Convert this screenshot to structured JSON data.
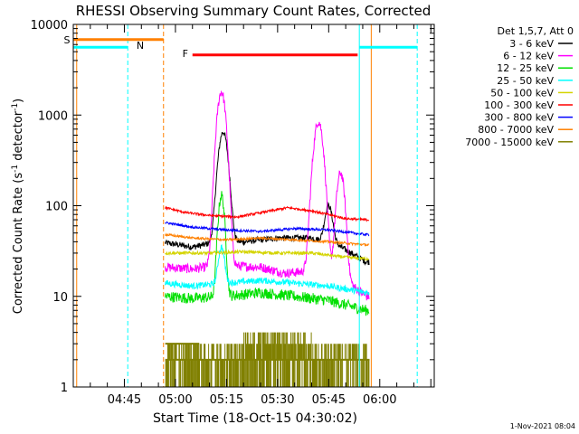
{
  "chart_data": {
    "type": "line",
    "title": "RHESSI Observing Summary Count Rates, Corrected",
    "xlabel": "Start Time (18-Oct-15 04:30:02)",
    "ylabel_main": "Corrected Count Rate (s",
    "ylabel_exp1": "-1",
    "ylabel_mid": " detector",
    "ylabel_exp2": "-1",
    "ylabel_end": ")",
    "yscale": "log",
    "ylim": [
      1,
      10000
    ],
    "xlim_minutes": [
      0,
      106
    ],
    "y_ticks": [
      {
        "v": 1,
        "label": "1"
      },
      {
        "v": 10,
        "label": "10"
      },
      {
        "v": 100,
        "label": "100"
      },
      {
        "v": 1000,
        "label": "1000"
      },
      {
        "v": 10000,
        "label": "10000"
      }
    ],
    "x_ticks": [
      {
        "m": 15,
        "label": "04:45"
      },
      {
        "m": 30,
        "label": "05:00"
      },
      {
        "m": 45,
        "label": "05:15"
      },
      {
        "m": 60,
        "label": "05:30"
      },
      {
        "m": 75,
        "label": "05:45"
      },
      {
        "m": 90,
        "label": "06:00"
      }
    ],
    "legend_header": "Det 1,5,7, Att 0",
    "series": [
      {
        "name": "3 - 6 keV",
        "color": "#000000",
        "base": [
          [
            27,
            39
          ],
          [
            35,
            35
          ],
          [
            43,
            40
          ],
          [
            50,
            40
          ],
          [
            60,
            44
          ],
          [
            70,
            44
          ],
          [
            78,
            36
          ],
          [
            86,
            24
          ]
        ],
        "peaks": [
          [
            44,
            650,
            1.2
          ],
          [
            75,
            100,
            1.0
          ]
        ],
        "noise": 0.08
      },
      {
        "name": "6 - 12 keV",
        "color": "#ff00ff",
        "base": [
          [
            27,
            21
          ],
          [
            35,
            20
          ],
          [
            43,
            22
          ],
          [
            55,
            21
          ],
          [
            62,
            18
          ],
          [
            70,
            19
          ],
          [
            78,
            17
          ],
          [
            86,
            10
          ]
        ],
        "peaks": [
          [
            43.5,
            1800,
            1.1
          ],
          [
            72,
            850,
            1.2
          ],
          [
            78.5,
            230,
            1.0
          ]
        ],
        "noise": 0.12
      },
      {
        "name": "12 - 25 keV",
        "color": "#00e000",
        "base": [
          [
            27,
            10
          ],
          [
            35,
            9.5
          ],
          [
            45,
            10
          ],
          [
            55,
            11
          ],
          [
            65,
            10
          ],
          [
            75,
            9
          ],
          [
            86,
            7
          ]
        ],
        "peaks": [
          [
            43.5,
            130,
            0.8
          ]
        ],
        "noise": 0.14
      },
      {
        "name": "25 - 50 keV",
        "color": "#00ffff",
        "base": [
          [
            27,
            14
          ],
          [
            35,
            13
          ],
          [
            45,
            14
          ],
          [
            55,
            15
          ],
          [
            65,
            14
          ],
          [
            75,
            13
          ],
          [
            86,
            11
          ]
        ],
        "peaks": [
          [
            43.5,
            35,
            0.8
          ]
        ],
        "noise": 0.08
      },
      {
        "name": "50 - 100 keV",
        "color": "#d4d400",
        "base": [
          [
            27,
            30
          ],
          [
            40,
            30
          ],
          [
            50,
            31
          ],
          [
            60,
            30
          ],
          [
            70,
            30
          ],
          [
            80,
            27
          ],
          [
            86,
            26
          ]
        ],
        "peaks": [],
        "noise": 0.04
      },
      {
        "name": "100 - 300 keV",
        "color": "#ff0000",
        "base": [
          [
            27,
            95
          ],
          [
            33,
            84
          ],
          [
            40,
            78
          ],
          [
            48,
            75
          ],
          [
            56,
            85
          ],
          [
            63,
            95
          ],
          [
            70,
            88
          ],
          [
            80,
            72
          ],
          [
            86,
            70
          ]
        ],
        "peaks": [],
        "noise": 0.03
      },
      {
        "name": "300 - 800 keV",
        "color": "#0000ff",
        "base": [
          [
            27,
            65
          ],
          [
            35,
            58
          ],
          [
            45,
            54
          ],
          [
            55,
            52
          ],
          [
            65,
            56
          ],
          [
            75,
            54
          ],
          [
            86,
            48
          ]
        ],
        "peaks": [],
        "noise": 0.03
      },
      {
        "name": "800 - 7000 keV",
        "color": "#ff8000",
        "base": [
          [
            27,
            48
          ],
          [
            35,
            44
          ],
          [
            45,
            42
          ],
          [
            55,
            44
          ],
          [
            65,
            42
          ],
          [
            75,
            40
          ],
          [
            86,
            37
          ]
        ],
        "peaks": [],
        "noise": 0.03
      },
      {
        "name": "7000 - 15000 keV",
        "color": "#808000",
        "base": [
          [
            27,
            2
          ],
          [
            86,
            2
          ]
        ],
        "peaks": [],
        "noise": 0.0
      }
    ],
    "flags": [
      {
        "label": "S",
        "color": "#ff8000",
        "y": 6800,
        "m0": 0,
        "m1": 26.5
      },
      {
        "label": "N",
        "color": "#00ffff",
        "y": 5600,
        "m0": 0,
        "m1": 16
      },
      {
        "label": "F",
        "color": "#ff0000",
        "y": 4600,
        "m0": 35,
        "m1": 83.5
      },
      {
        "label": "",
        "color": "#00ffff",
        "y": 5600,
        "m0": 84,
        "m1": 101
      }
    ],
    "vlines": [
      {
        "m": 0,
        "color": "#00ffff",
        "style": "solid"
      },
      {
        "m": 1,
        "color": "#ff8000",
        "style": "solid"
      },
      {
        "m": 16,
        "color": "#00ffff",
        "style": "dashed"
      },
      {
        "m": 26.5,
        "color": "#ff8000",
        "style": "dashed"
      },
      {
        "m": 84,
        "color": "#00ffff",
        "style": "solid"
      },
      {
        "m": 87.5,
        "color": "#ff8000",
        "style": "solid"
      },
      {
        "m": 101,
        "color": "#00ffff",
        "style": "dashed"
      }
    ]
  },
  "footer": {
    "timestamp": " 1-Nov-2021 08:04"
  }
}
